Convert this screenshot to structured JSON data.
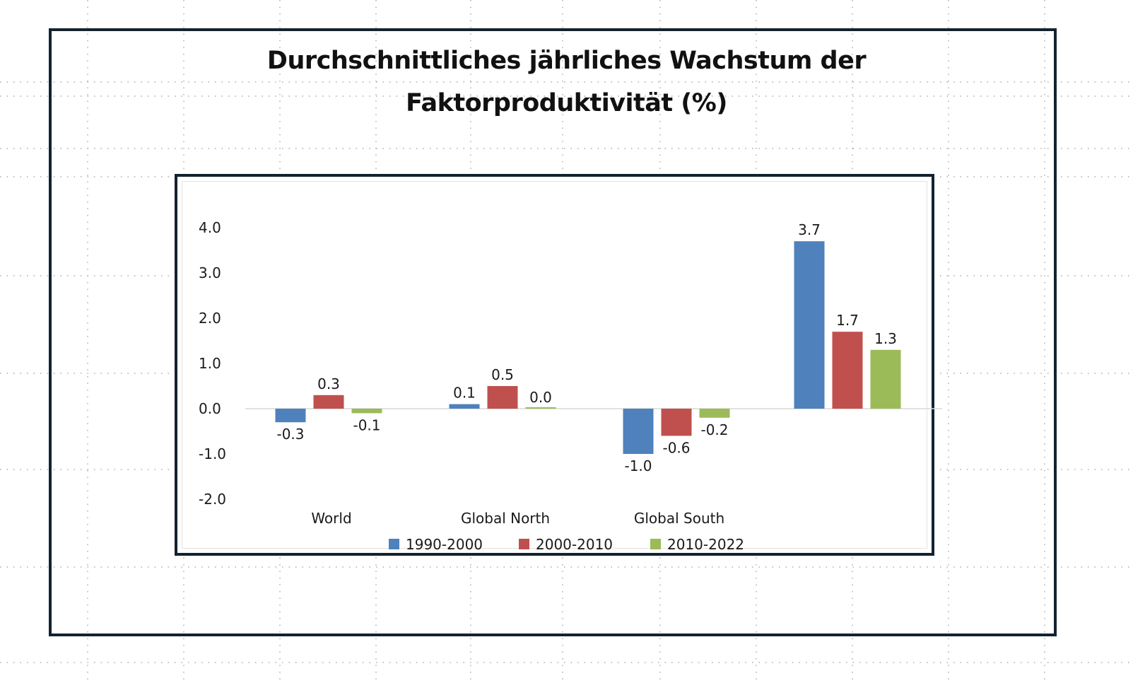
{
  "title_line1": "Durchschnittliches jährliches Wachstum der",
  "title_line2": "Faktorproduktivität (%)",
  "colors": {
    "series_1990_2000": "#4f81bd",
    "series_2000_2010": "#c0504d",
    "series_2010_2022": "#9bbb59",
    "frame": "#13222f"
  },
  "chart_data": {
    "type": "bar",
    "categories": [
      "World",
      "Global North",
      "Global South",
      ""
    ],
    "series": [
      {
        "name": "1990-2000",
        "values": [
          -0.3,
          0.1,
          -1.0,
          3.7
        ],
        "labels": [
          "-0.3",
          "0.1",
          "-1.0",
          "3.7"
        ]
      },
      {
        "name": "2000-2010",
        "values": [
          0.3,
          0.5,
          -0.6,
          1.7
        ],
        "labels": [
          "0.3",
          "0.5",
          "-0.6",
          "1.7"
        ]
      },
      {
        "name": "2010-2022",
        "values": [
          -0.1,
          0.0,
          -0.2,
          1.3
        ],
        "labels": [
          "-0.1",
          "0.0",
          "-0.2",
          "1.3"
        ]
      }
    ],
    "yticks": [
      "4.0",
      "3.0",
      "2.0",
      "1.0",
      "0.0",
      "-1.0",
      "-2.0"
    ],
    "ylim": [
      -2.0,
      4.0
    ],
    "grid": false,
    "legend_position": "bottom"
  }
}
